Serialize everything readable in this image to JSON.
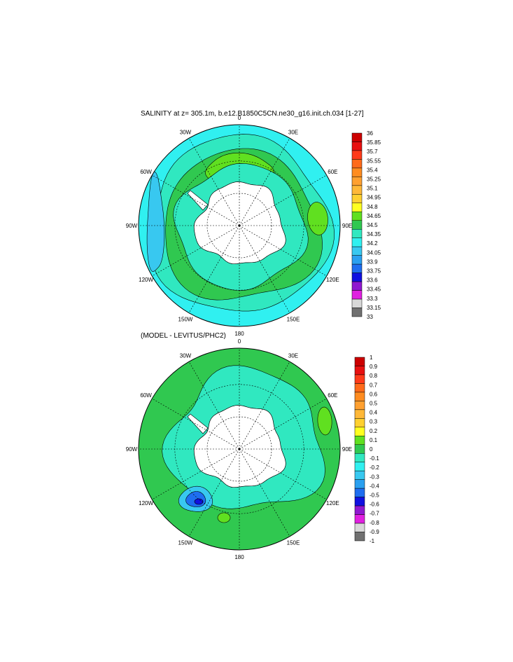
{
  "panel1": {
    "title": "SALINITY at z= 305.1m, b.e12.B1850C5CN.ne30_g16.init.ch.034 [1-27]",
    "lon_labels": [
      "0",
      "30E",
      "60E",
      "90E",
      "120E",
      "150E",
      "180",
      "150W",
      "120W",
      "90W",
      "60W",
      "30W"
    ],
    "colorbar": {
      "labels": [
        "36",
        "35.85",
        "35.7",
        "35.55",
        "35.4",
        "35.25",
        "35.1",
        "34.95",
        "34.8",
        "34.65",
        "34.5",
        "34.35",
        "34.2",
        "34.05",
        "33.9",
        "33.75",
        "33.6",
        "33.45",
        "33.3",
        "33.15",
        "33"
      ],
      "colors": [
        "#cc0000",
        "#e81010",
        "#ff3a1a",
        "#ff6a1a",
        "#ff8c20",
        "#ffa030",
        "#ffb838",
        "#ffd030",
        "#ffff20",
        "#60e020",
        "#30c850",
        "#30e8c0",
        "#30f0f0",
        "#38c8f0",
        "#2aa0f0",
        "#1e6ef0",
        "#1010e0",
        "#9018d0",
        "#e020e0",
        "#d8d8d8",
        "#707070"
      ]
    }
  },
  "panel2": {
    "title": "(MODEL - LEVITUS/PHC2)",
    "lon_labels": [
      "0",
      "30E",
      "60E",
      "90E",
      "120E",
      "150E",
      "180",
      "150W",
      "120W",
      "90W",
      "60W",
      "30W"
    ],
    "colorbar": {
      "labels": [
        "1",
        "0.9",
        "0.8",
        "0.7",
        "0.6",
        "0.5",
        "0.4",
        "0.3",
        "0.2",
        "0.1",
        "0",
        "-0.1",
        "-0.2",
        "-0.3",
        "-0.4",
        "-0.5",
        "-0.6",
        "-0.7",
        "-0.8",
        "-0.9",
        "-1"
      ],
      "colors": [
        "#cc0000",
        "#e81010",
        "#ff3a1a",
        "#ff6a1a",
        "#ff8c20",
        "#ffa030",
        "#ffb838",
        "#ffd030",
        "#ffff20",
        "#60e020",
        "#30c850",
        "#30e8c0",
        "#30f0f0",
        "#38c8f0",
        "#2aa0f0",
        "#1e6ef0",
        "#1010e0",
        "#9018d0",
        "#e020e0",
        "#d8d8d8",
        "#707070"
      ]
    }
  }
}
